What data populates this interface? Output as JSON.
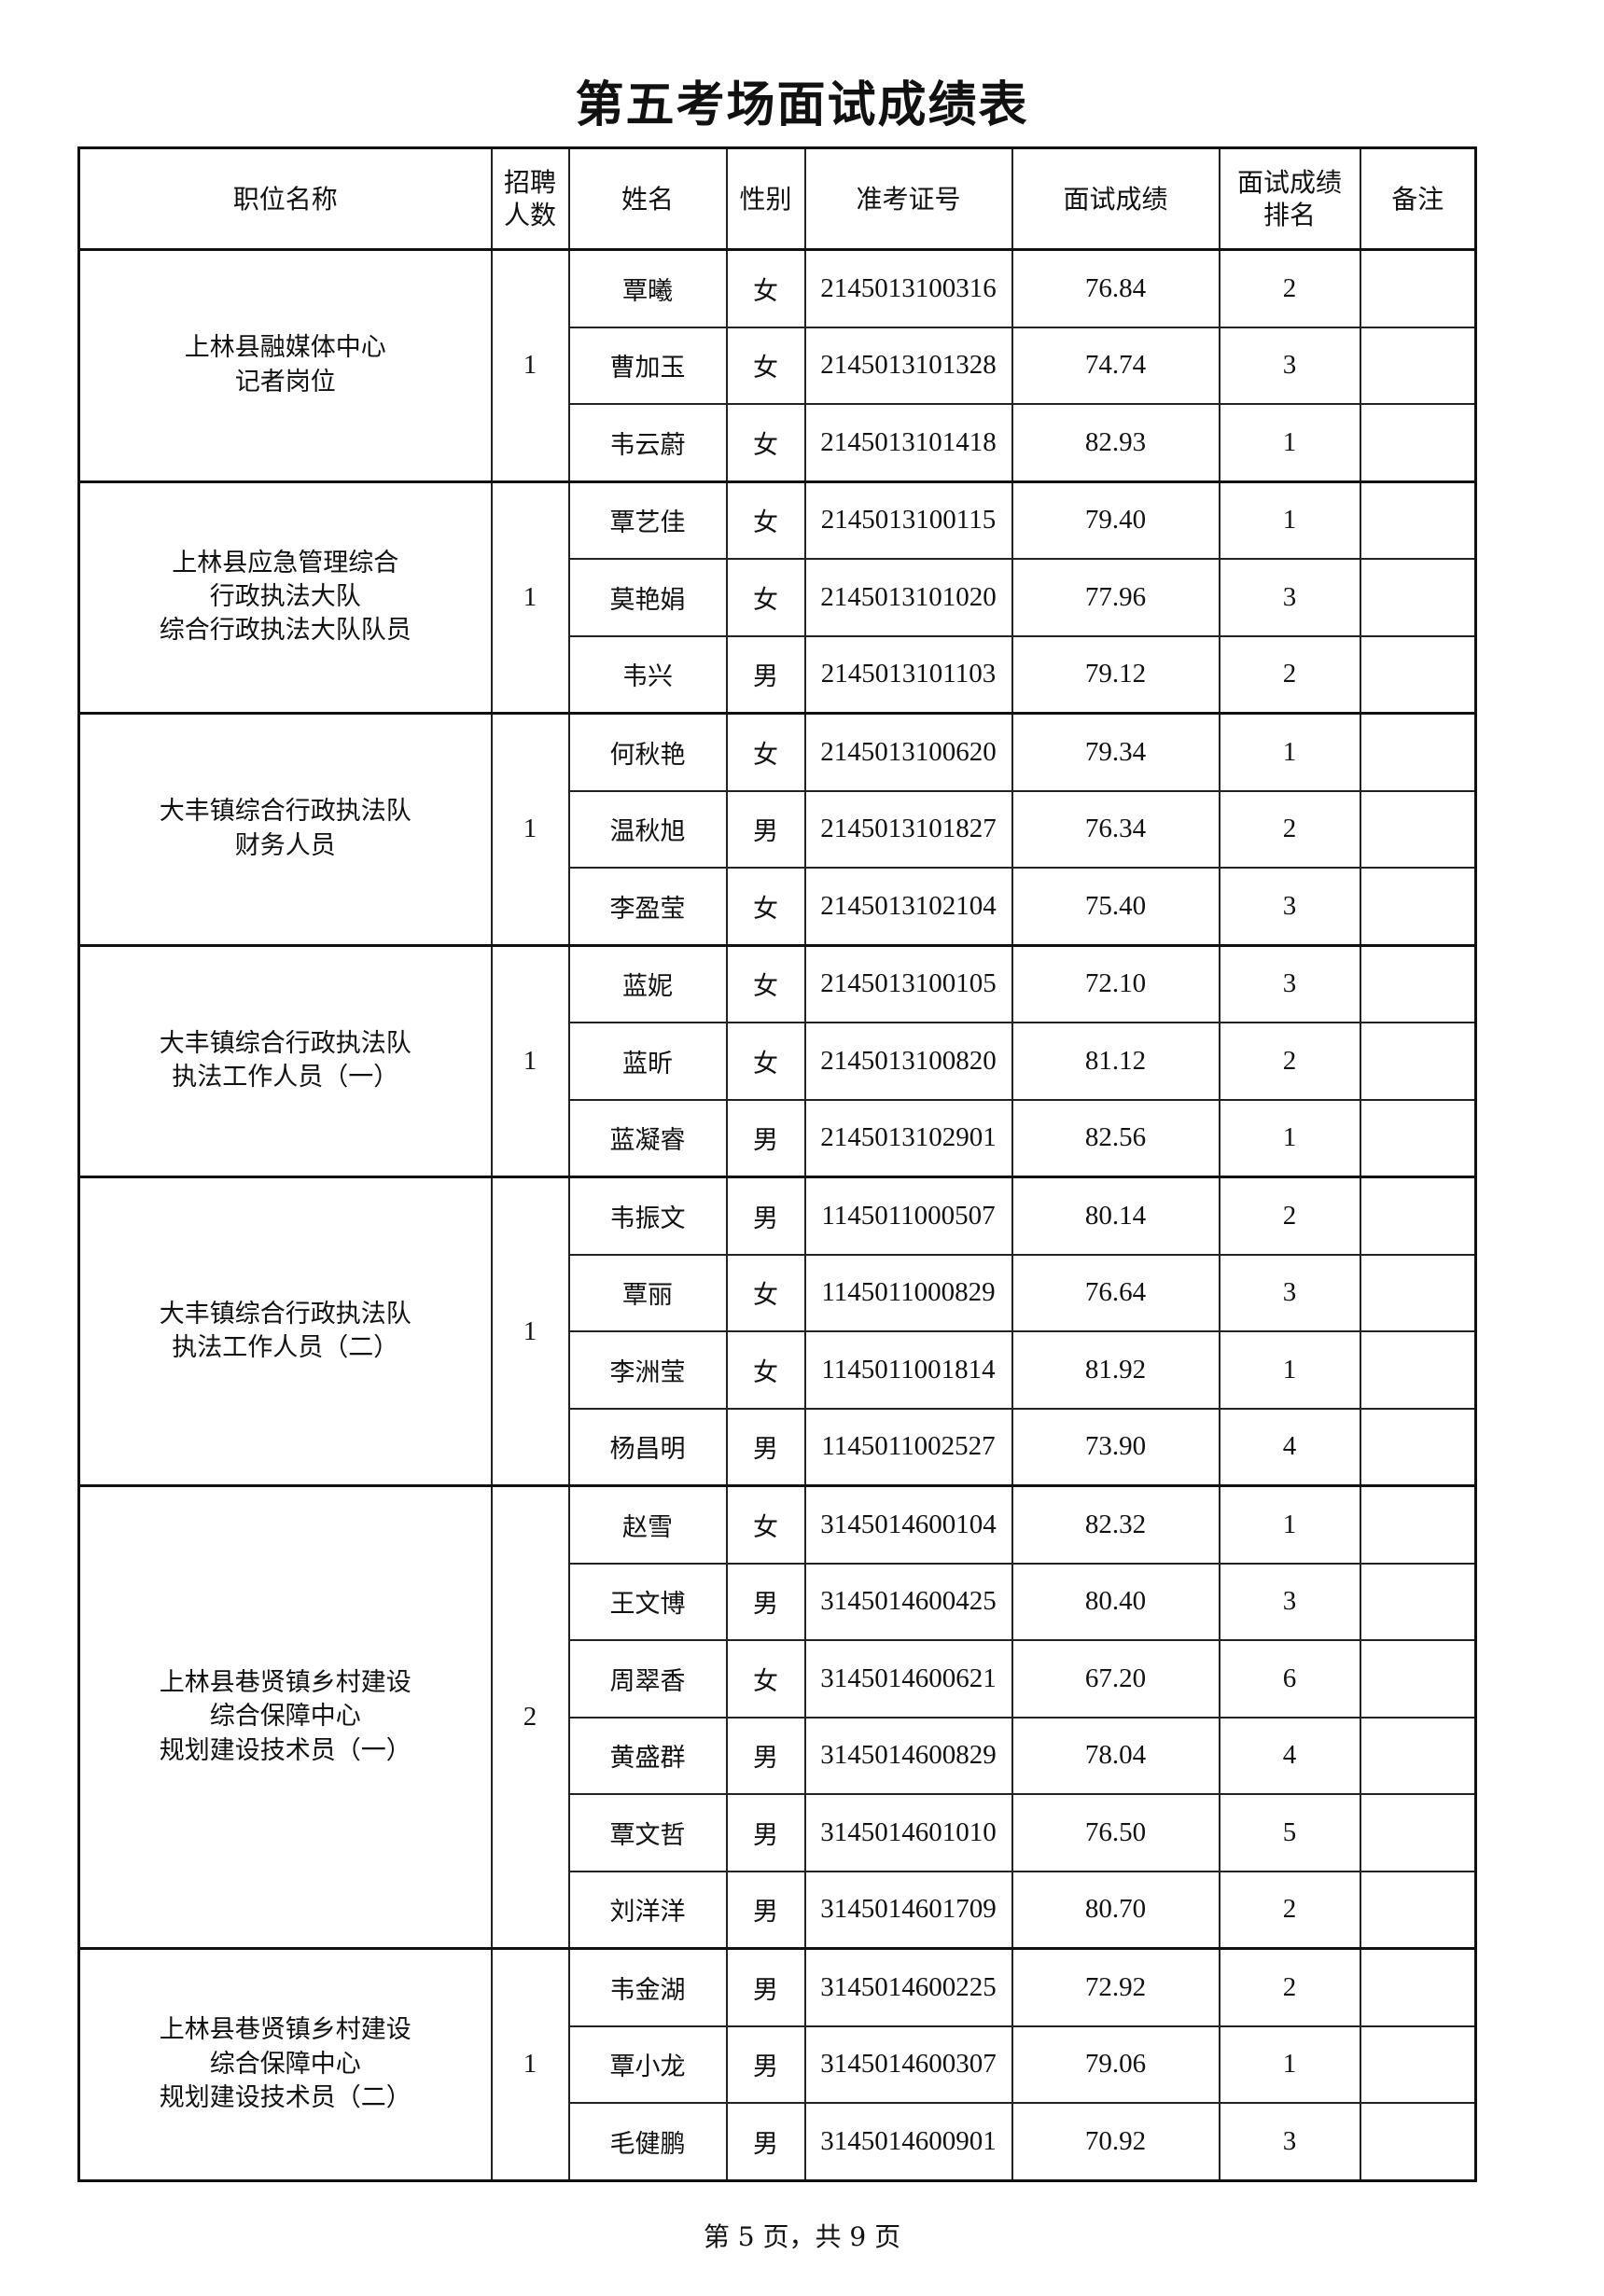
{
  "title": "第五考场面试成绩表",
  "headers": [
    "职位名称",
    "招聘\n人数",
    "姓名",
    "性别",
    "准考证号",
    "面试成绩",
    "面试成绩\n排名",
    "备注"
  ],
  "groups": [
    {
      "position": "上林县融媒体中心\n记者岗位",
      "quota": "1",
      "rows": [
        {
          "name": "覃曦",
          "gender": "女",
          "id": "2145013100316",
          "score": "76.84",
          "rank": "2",
          "note": ""
        },
        {
          "name": "曹加玉",
          "gender": "女",
          "id": "2145013101328",
          "score": "74.74",
          "rank": "3",
          "note": ""
        },
        {
          "name": "韦云蔚",
          "gender": "女",
          "id": "2145013101418",
          "score": "82.93",
          "rank": "1",
          "note": ""
        }
      ]
    },
    {
      "position": "上林县应急管理综合\n行政执法大队\n综合行政执法大队队员",
      "quota": "1",
      "rows": [
        {
          "name": "覃艺佳",
          "gender": "女",
          "id": "2145013100115",
          "score": "79.40",
          "rank": "1",
          "note": ""
        },
        {
          "name": "莫艳娟",
          "gender": "女",
          "id": "2145013101020",
          "score": "77.96",
          "rank": "3",
          "note": ""
        },
        {
          "name": "韦兴",
          "gender": "男",
          "id": "2145013101103",
          "score": "79.12",
          "rank": "2",
          "note": ""
        }
      ]
    },
    {
      "position": "大丰镇综合行政执法队\n财务人员",
      "quota": "1",
      "rows": [
        {
          "name": "何秋艳",
          "gender": "女",
          "id": "2145013100620",
          "score": "79.34",
          "rank": "1",
          "note": ""
        },
        {
          "name": "温秋旭",
          "gender": "男",
          "id": "2145013101827",
          "score": "76.34",
          "rank": "2",
          "note": ""
        },
        {
          "name": "李盈莹",
          "gender": "女",
          "id": "2145013102104",
          "score": "75.40",
          "rank": "3",
          "note": ""
        }
      ]
    },
    {
      "position": "大丰镇综合行政执法队\n执法工作人员（一）",
      "quota": "1",
      "rows": [
        {
          "name": "蓝妮",
          "gender": "女",
          "id": "2145013100105",
          "score": "72.10",
          "rank": "3",
          "note": ""
        },
        {
          "name": "蓝昕",
          "gender": "女",
          "id": "2145013100820",
          "score": "81.12",
          "rank": "2",
          "note": ""
        },
        {
          "name": "蓝凝睿",
          "gender": "男",
          "id": "2145013102901",
          "score": "82.56",
          "rank": "1",
          "note": ""
        }
      ]
    },
    {
      "position": "大丰镇综合行政执法队\n执法工作人员（二）",
      "quota": "1",
      "rows": [
        {
          "name": "韦振文",
          "gender": "男",
          "id": "1145011000507",
          "score": "80.14",
          "rank": "2",
          "note": ""
        },
        {
          "name": "覃丽",
          "gender": "女",
          "id": "1145011000829",
          "score": "76.64",
          "rank": "3",
          "note": ""
        },
        {
          "name": "李洲莹",
          "gender": "女",
          "id": "1145011001814",
          "score": "81.92",
          "rank": "1",
          "note": ""
        },
        {
          "name": "杨昌明",
          "gender": "男",
          "id": "1145011002527",
          "score": "73.90",
          "rank": "4",
          "note": ""
        }
      ]
    },
    {
      "position": "上林县巷贤镇乡村建设\n综合保障中心\n规划建设技术员（一）",
      "quota": "2",
      "rows": [
        {
          "name": "赵雪",
          "gender": "女",
          "id": "3145014600104",
          "score": "82.32",
          "rank": "1",
          "note": ""
        },
        {
          "name": "王文博",
          "gender": "男",
          "id": "3145014600425",
          "score": "80.40",
          "rank": "3",
          "note": ""
        },
        {
          "name": "周翠香",
          "gender": "女",
          "id": "3145014600621",
          "score": "67.20",
          "rank": "6",
          "note": ""
        },
        {
          "name": "黄盛群",
          "gender": "男",
          "id": "3145014600829",
          "score": "78.04",
          "rank": "4",
          "note": ""
        },
        {
          "name": "覃文哲",
          "gender": "男",
          "id": "3145014601010",
          "score": "76.50",
          "rank": "5",
          "note": ""
        },
        {
          "name": "刘洋洋",
          "gender": "男",
          "id": "3145014601709",
          "score": "80.70",
          "rank": "2",
          "note": ""
        }
      ]
    },
    {
      "position": "上林县巷贤镇乡村建设\n综合保障中心\n规划建设技术员（二）",
      "quota": "1",
      "rows": [
        {
          "name": "韦金湖",
          "gender": "男",
          "id": "3145014600225",
          "score": "72.92",
          "rank": "2",
          "note": ""
        },
        {
          "name": "覃小龙",
          "gender": "男",
          "id": "3145014600307",
          "score": "79.06",
          "rank": "1",
          "note": ""
        },
        {
          "name": "毛健鹏",
          "gender": "男",
          "id": "3145014600901",
          "score": "70.92",
          "rank": "3",
          "note": ""
        }
      ]
    }
  ],
  "footer": "第 5 页，共 9 页"
}
